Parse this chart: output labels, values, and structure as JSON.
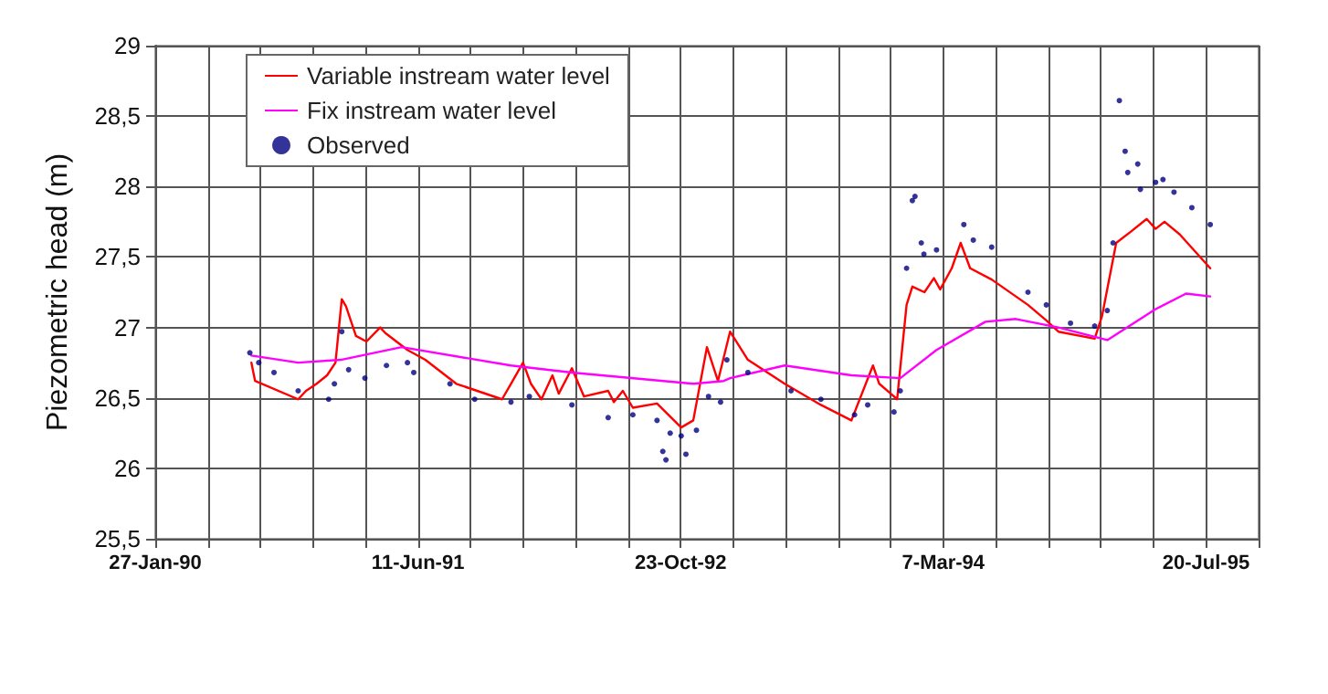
{
  "chart_data": {
    "type": "line",
    "ylabel": "Piezometric head (m)",
    "xlim": [
      "1990-01-27",
      "1995-10-28"
    ],
    "xticks": [
      {
        "value": "1990-01-27",
        "label": "27-Jan-90"
      },
      {
        "value": "1990-05-07",
        "label": null
      },
      {
        "value": "1990-08-15",
        "label": null
      },
      {
        "value": "1990-11-23",
        "label": null
      },
      {
        "value": "1991-03-03",
        "label": null
      },
      {
        "value": "1991-06-11",
        "label": "11-Jun-91"
      },
      {
        "value": "1991-09-19",
        "label": null
      },
      {
        "value": "1991-12-28",
        "label": null
      },
      {
        "value": "1992-04-06",
        "label": null
      },
      {
        "value": "1992-07-15",
        "label": null
      },
      {
        "value": "1992-10-23",
        "label": "23-Oct-92"
      },
      {
        "value": "1993-01-31",
        "label": null
      },
      {
        "value": "1993-05-11",
        "label": null
      },
      {
        "value": "1993-08-19",
        "label": null
      },
      {
        "value": "1993-11-27",
        "label": null
      },
      {
        "value": "1994-03-07",
        "label": "7-Mar-94"
      },
      {
        "value": "1994-06-15",
        "label": null
      },
      {
        "value": "1994-09-23",
        "label": null
      },
      {
        "value": "1995-01-01",
        "label": null
      },
      {
        "value": "1995-04-11",
        "label": null
      },
      {
        "value": "1995-07-20",
        "label": "20-Jul-95"
      },
      {
        "value": "1995-10-28",
        "label": null
      }
    ],
    "ylim": [
      25.5,
      29
    ],
    "yticks": [
      {
        "value": 25.5,
        "label": "25,5"
      },
      26,
      {
        "value": 26.5,
        "label": "26,5"
      },
      27,
      {
        "value": 27.5,
        "label": "27,5"
      },
      28,
      {
        "value": 28.5,
        "label": "28,5"
      },
      29
    ],
    "grid": true,
    "legend": "top left",
    "line_style": "solid",
    "series": [
      {
        "name": "Variable instream water level",
        "color": "#ff0000",
        "marker": "none",
        "x": [
          "1990-07-29",
          "1990-08-05",
          "1990-10-26",
          "1990-11-10",
          "1990-11-30",
          "1990-12-20",
          "1991-01-05",
          "1991-01-17",
          "1991-01-25",
          "1991-02-13",
          "1991-03-05",
          "1991-03-31",
          "1991-04-10",
          "1991-05-22",
          "1991-06-25",
          "1991-08-23",
          "1991-11-18",
          "1991-12-05",
          "1991-12-28",
          "1992-01-12",
          "1992-02-01",
          "1992-02-22",
          "1992-03-05",
          "1992-03-30",
          "1992-04-22",
          "1992-06-07",
          "1992-06-18",
          "1992-07-05",
          "1992-07-24",
          "1992-09-08",
          "1992-10-24",
          "1992-11-16",
          "1992-12-12",
          "1993-01-02",
          "1993-01-25",
          "1993-02-28",
          "1993-05-09",
          "1993-07-17",
          "1993-09-13",
          "1993-10-24",
          "1993-11-05",
          "1993-11-27",
          "1993-12-09",
          "1993-12-27",
          "1994-01-07",
          "1994-01-30",
          "1994-02-17",
          "1994-03-01",
          "1994-03-23",
          "1994-04-09",
          "1994-04-27",
          "1994-06-07",
          "1994-08-15",
          "1994-09-19",
          "1994-10-12",
          "1994-12-20",
          "1995-01-03",
          "1995-01-30",
          "1995-02-27",
          "1995-03-29",
          "1995-04-15",
          "1995-05-02",
          "1995-05-31",
          "1995-07-28"
        ],
        "values": [
          26.75,
          26.62,
          26.49,
          26.55,
          26.6,
          26.66,
          26.75,
          27.2,
          27.15,
          26.94,
          26.9,
          27.0,
          26.96,
          26.84,
          26.77,
          26.6,
          26.49,
          26.6,
          26.75,
          26.6,
          26.49,
          26.66,
          26.53,
          26.71,
          26.51,
          26.55,
          26.47,
          26.55,
          26.43,
          26.46,
          26.29,
          26.34,
          26.86,
          26.62,
          26.97,
          26.77,
          26.6,
          26.45,
          26.34,
          26.73,
          26.6,
          26.53,
          26.49,
          27.16,
          27.29,
          27.25,
          27.35,
          27.27,
          27.42,
          27.6,
          27.42,
          27.34,
          27.16,
          27.05,
          26.97,
          26.92,
          27.08,
          27.6,
          27.68,
          27.77,
          27.7,
          27.75,
          27.66,
          27.42
        ]
      },
      {
        "name": "Fix instream water level",
        "color": "#ff00ff",
        "marker": "none",
        "x": [
          "1990-07-29",
          "1990-10-26",
          "1991-01-15",
          "1991-05-11",
          "1991-12-05",
          "1992-03-30",
          "1992-11-16",
          "1993-01-13",
          "1993-01-25",
          "1993-05-09",
          "1993-09-13",
          "1993-12-15",
          "1994-02-22",
          "1994-05-26",
          "1994-07-23",
          "1994-10-12",
          "1995-01-13",
          "1995-04-15",
          "1995-06-12",
          "1995-07-28"
        ],
        "values": [
          26.8,
          26.75,
          26.77,
          26.86,
          26.73,
          26.68,
          26.6,
          26.62,
          26.64,
          26.73,
          26.66,
          26.64,
          26.84,
          27.04,
          27.06,
          27.0,
          26.91,
          27.13,
          27.24,
          27.22
        ]
      },
      {
        "name": "Observed",
        "type": "scatter",
        "color": "#000080",
        "marker": "circle",
        "x": [
          "1990-07-26",
          "1990-08-12",
          "1990-09-10",
          "1990-10-26",
          "1990-12-23",
          "1991-01-03",
          "1991-01-17",
          "1991-01-30",
          "1991-03-02",
          "1991-04-12",
          "1991-05-22",
          "1991-06-03",
          "1991-08-11",
          "1991-09-27",
          "1991-12-05",
          "1992-01-09",
          "1992-03-30",
          "1992-06-07",
          "1992-07-24",
          "1992-09-08",
          "1992-09-19",
          "1992-09-25",
          "1992-10-03",
          "1992-10-24",
          "1992-11-02",
          "1992-11-22",
          "1992-12-15",
          "1993-01-07",
          "1993-01-19",
          "1993-02-28",
          "1993-05-21",
          "1993-07-17",
          "1993-09-19",
          "1993-10-14",
          "1993-12-03",
          "1993-12-15",
          "1993-12-27",
          "1994-01-07",
          "1994-01-12",
          "1994-01-24",
          "1994-01-29",
          "1994-02-22",
          "1994-04-15",
          "1994-05-03",
          "1994-06-07",
          "1994-08-15",
          "1994-09-19",
          "1994-11-04",
          "1994-12-20",
          "1995-01-13",
          "1995-01-24",
          "1995-02-05",
          "1995-02-16",
          "1995-02-21",
          "1995-03-12",
          "1995-03-17",
          "1995-04-15",
          "1995-04-29",
          "1995-05-20",
          "1995-06-23",
          "1995-07-28"
        ],
        "values": [
          26.82,
          26.75,
          26.68,
          26.55,
          26.49,
          26.6,
          26.97,
          26.7,
          26.64,
          26.73,
          26.75,
          26.68,
          26.6,
          26.49,
          26.47,
          26.51,
          26.45,
          26.36,
          26.38,
          26.34,
          26.12,
          26.06,
          26.25,
          26.23,
          26.1,
          26.27,
          26.51,
          26.47,
          26.77,
          26.68,
          26.55,
          26.49,
          26.38,
          26.45,
          26.4,
          26.55,
          27.42,
          27.9,
          27.93,
          27.6,
          27.52,
          27.55,
          27.73,
          27.62,
          27.57,
          27.25,
          27.16,
          27.03,
          27.01,
          27.12,
          27.6,
          28.61,
          28.25,
          28.1,
          28.16,
          27.98,
          28.03,
          28.05,
          27.96,
          27.85,
          27.73
        ]
      }
    ]
  }
}
